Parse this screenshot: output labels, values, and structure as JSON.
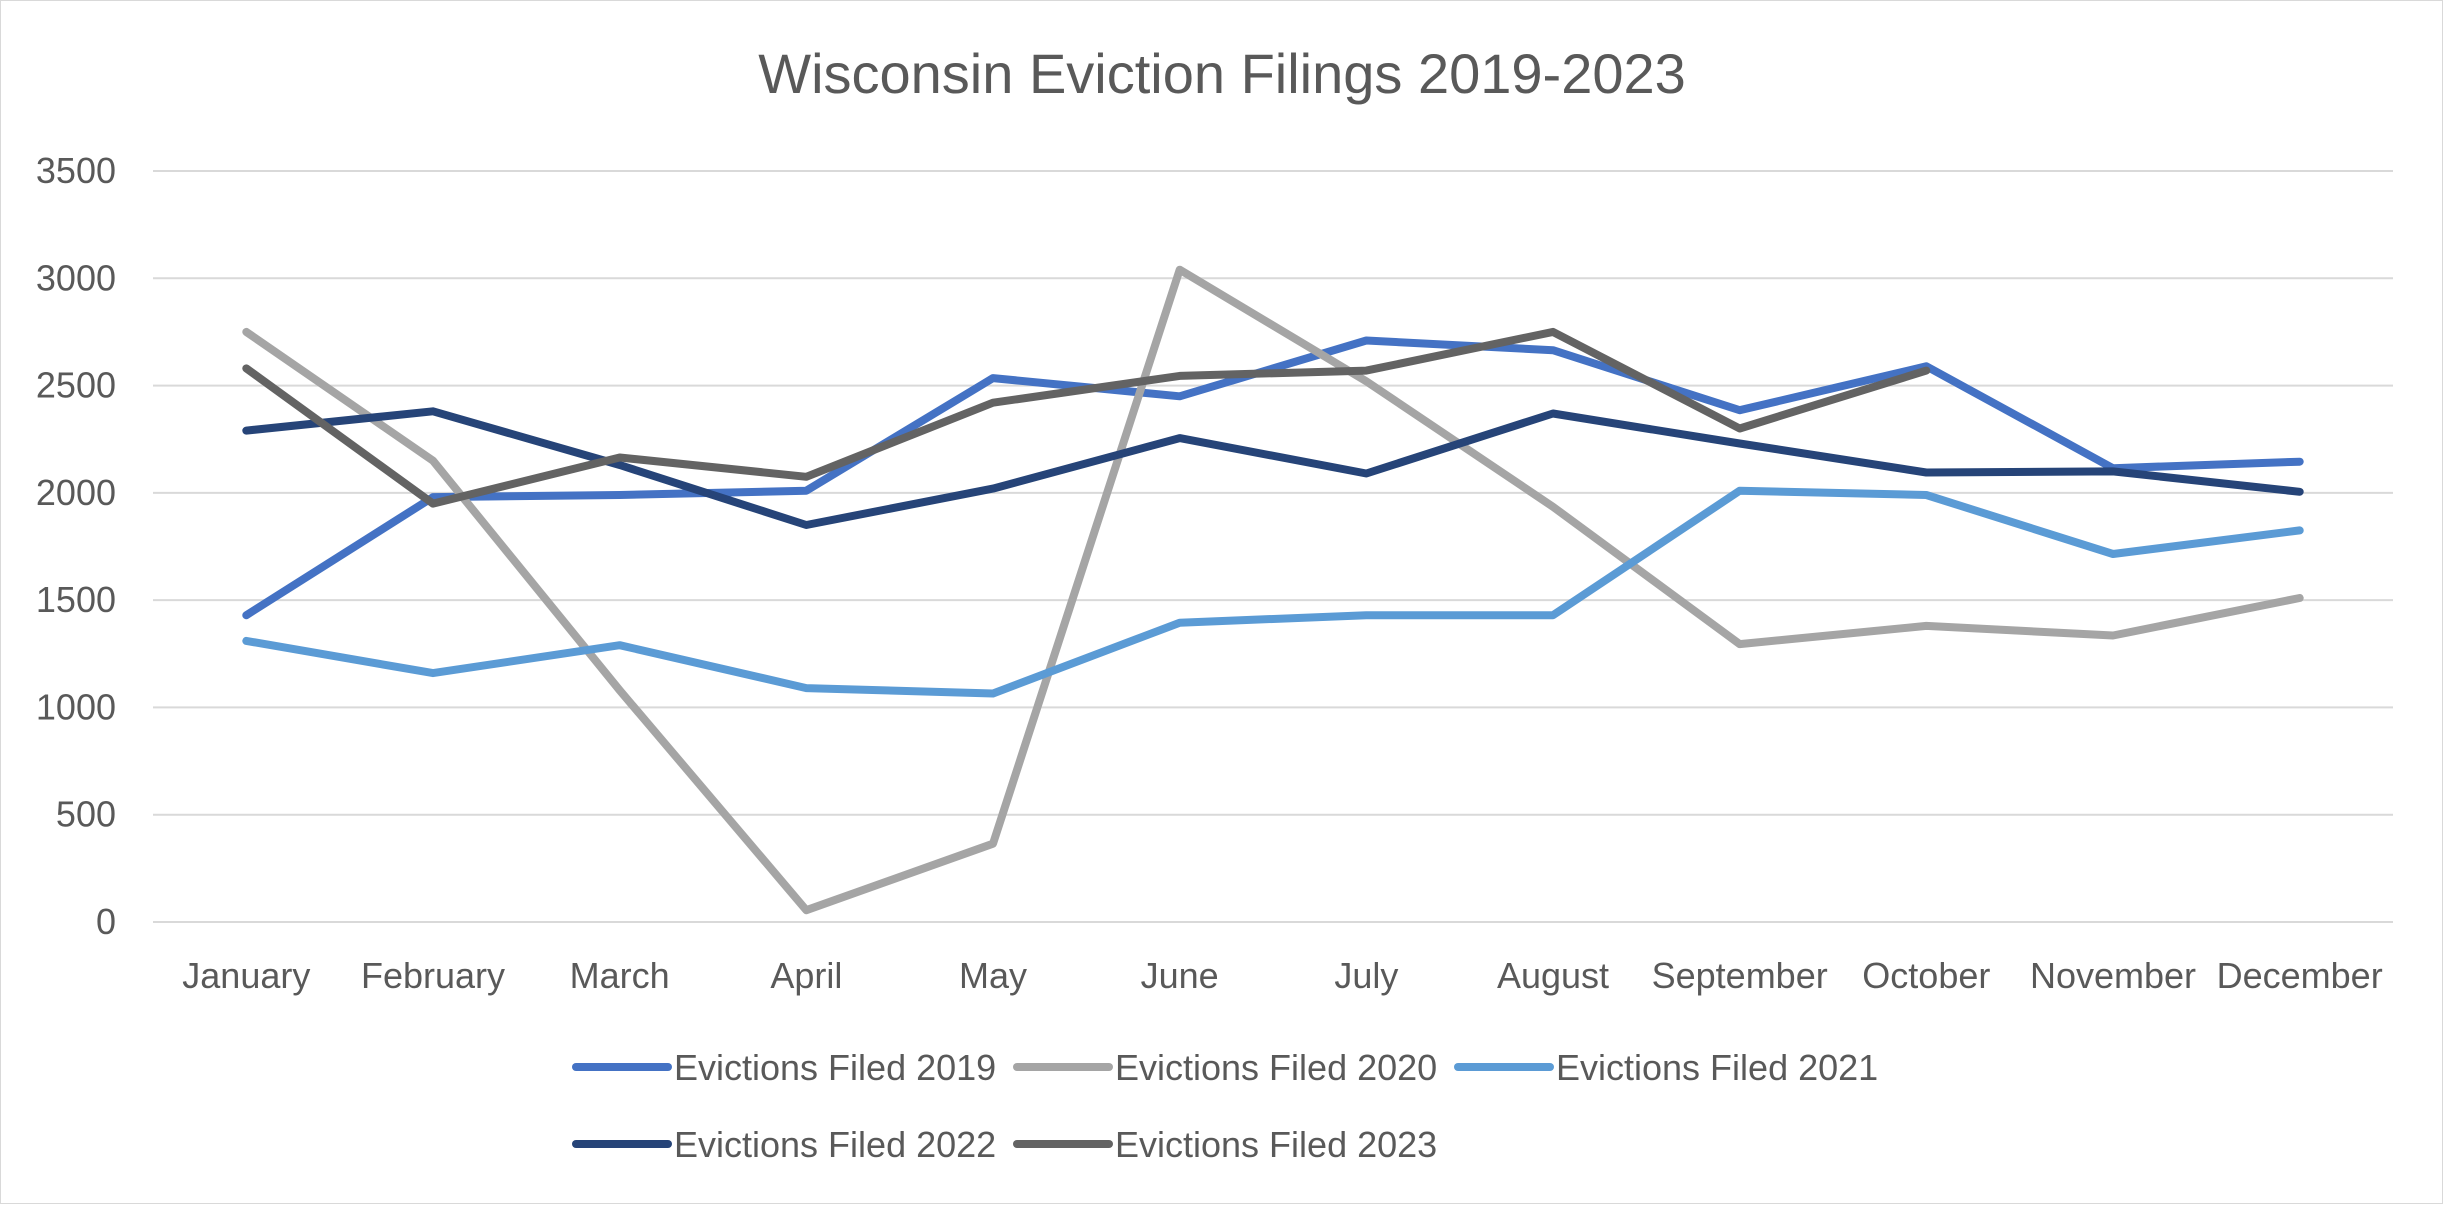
{
  "chart_data": {
    "type": "line",
    "title": "Wisconsin Eviction Filings 2019-2023",
    "xlabel": "",
    "ylabel": "",
    "ylim": [
      0,
      3500
    ],
    "yticks": [
      0,
      500,
      1000,
      1500,
      2000,
      2500,
      3000,
      3500
    ],
    "grid": true,
    "legend_position": "bottom",
    "categories": [
      "January",
      "February",
      "March",
      "April",
      "May",
      "June",
      "July",
      "August",
      "September",
      "October",
      "November",
      "December"
    ],
    "series": [
      {
        "name": "Evictions Filed 2019",
        "color": "#4472C4",
        "values": [
          1430,
          1980,
          1990,
          2010,
          2535,
          2450,
          2710,
          2665,
          2385,
          2590,
          2115,
          2145
        ]
      },
      {
        "name": "Evictions Filed 2020",
        "color": "#A5A5A5",
        "values": [
          2750,
          2150,
          1080,
          55,
          365,
          3040,
          2520,
          1935,
          1295,
          1380,
          1335,
          1510
        ]
      },
      {
        "name": "Evictions Filed 2021",
        "color": "#5B9BD5",
        "values": [
          1310,
          1160,
          1290,
          1090,
          1065,
          1395,
          1430,
          1430,
          2010,
          1990,
          1715,
          1825
        ]
      },
      {
        "name": "Evictions Filed 2022",
        "color": "#264478",
        "values": [
          2290,
          2380,
          2130,
          1850,
          2020,
          2255,
          2090,
          2370,
          2230,
          2095,
          2100,
          2005
        ]
      },
      {
        "name": "Evictions Filed 2023",
        "color": "#636363",
        "values": [
          2580,
          1950,
          2165,
          2075,
          2420,
          2545,
          2570,
          2750,
          2300,
          2570,
          null,
          null
        ]
      }
    ]
  }
}
